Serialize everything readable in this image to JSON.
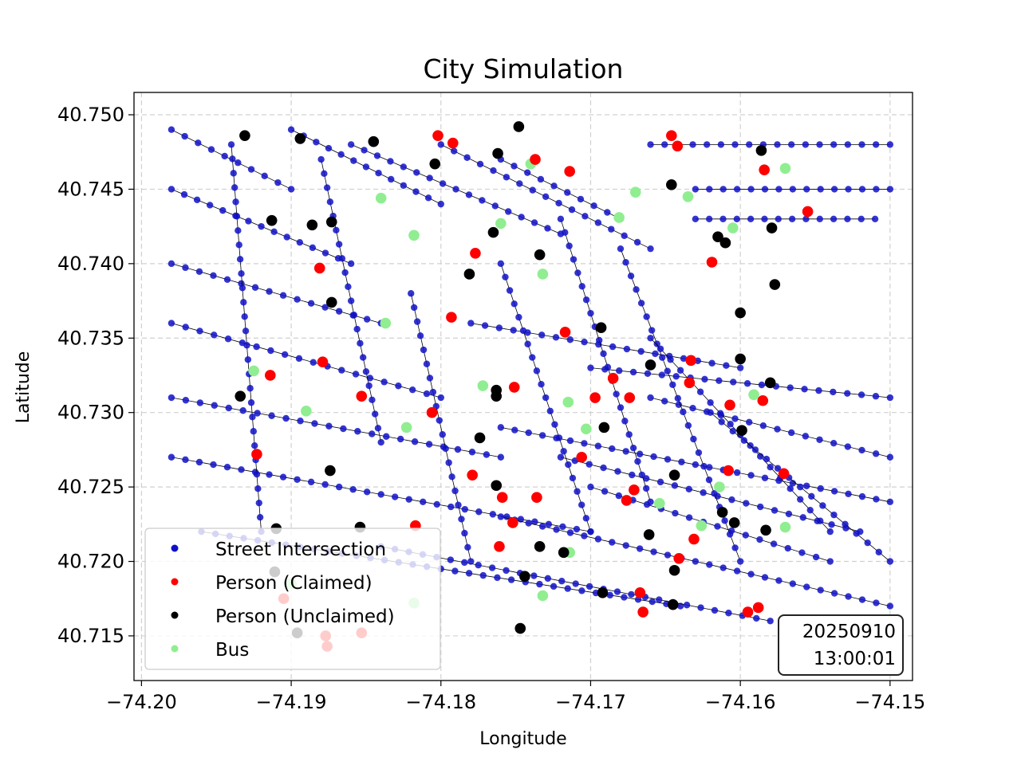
{
  "chart_data": {
    "type": "scatter",
    "title": "City Simulation",
    "xlabel": "Longitude",
    "ylabel": "Latitude",
    "xlim": [
      -74.2005,
      -74.1485
    ],
    "ylim": [
      40.712,
      40.7515
    ],
    "xticks": [
      -74.2,
      -74.19,
      -74.18,
      -74.17,
      -74.16,
      -74.15
    ],
    "xtick_labels": [
      "−74.20",
      "−74.19",
      "−74.18",
      "−74.17",
      "−74.16",
      "−74.15"
    ],
    "yticks": [
      40.715,
      40.72,
      40.725,
      40.73,
      40.735,
      40.74,
      40.745,
      40.75
    ],
    "ytick_labels": [
      "40.715",
      "40.720",
      "40.725",
      "40.730",
      "40.735",
      "40.740",
      "40.745",
      "40.750"
    ],
    "grid": true,
    "legend_position": "lower-left",
    "timestamp_date": "20250910",
    "timestamp_time": "13:00:01",
    "colors": {
      "street": "#1010c8",
      "street_edge": "#000000",
      "claimed": "#ff0000",
      "unclaimed": "#000000",
      "bus": "#90ee90",
      "grid": "#d0d0d0"
    },
    "series": [
      {
        "name": "Street Intersection",
        "color": "#1010c8",
        "grid_lines": [
          {
            "from": [
              -74.198,
              40.749
            ],
            "to": [
              -74.19,
              40.745
            ]
          },
          {
            "from": [
              -74.198,
              40.745
            ],
            "to": [
              -74.186,
              40.74
            ]
          },
          {
            "from": [
              -74.198,
              40.74
            ],
            "to": [
              -74.184,
              40.736
            ]
          },
          {
            "from": [
              -74.198,
              40.736
            ],
            "to": [
              -74.18,
              40.731
            ]
          },
          {
            "from": [
              -74.198,
              40.731
            ],
            "to": [
              -74.176,
              40.727
            ]
          },
          {
            "from": [
              -74.198,
              40.727
            ],
            "to": [
              -74.17,
              40.722
            ]
          },
          {
            "from": [
              -74.196,
              40.722
            ],
            "to": [
              -74.164,
              40.717
            ]
          },
          {
            "from": [
              -74.19,
              40.749
            ],
            "to": [
              -74.18,
              40.744
            ]
          },
          {
            "from": [
              -74.186,
              40.748
            ],
            "to": [
              -74.172,
              40.742
            ]
          },
          {
            "from": [
              -74.18,
              40.748
            ],
            "to": [
              -74.166,
              40.741
            ]
          },
          {
            "from": [
              -74.176,
              40.747
            ],
            "to": [
              -74.168,
              40.743
            ]
          },
          {
            "from": [
              -74.166,
              40.748
            ],
            "to": [
              -74.15,
              40.748
            ]
          },
          {
            "from": [
              -74.163,
              40.745
            ],
            "to": [
              -74.15,
              40.745
            ]
          },
          {
            "from": [
              -74.163,
              40.743
            ],
            "to": [
              -74.151,
              40.743
            ]
          },
          {
            "from": [
              -74.178,
              40.736
            ],
            "to": [
              -74.16,
              40.733
            ]
          },
          {
            "from": [
              -74.17,
              40.733
            ],
            "to": [
              -74.15,
              40.731
            ]
          },
          {
            "from": [
              -74.166,
              40.731
            ],
            "to": [
              -74.15,
              40.727
            ]
          },
          {
            "from": [
              -74.176,
              40.729
            ],
            "to": [
              -74.15,
              40.724
            ]
          },
          {
            "from": [
              -74.172,
              40.727
            ],
            "to": [
              -74.152,
              40.722
            ]
          },
          {
            "from": [
              -74.17,
              40.725
            ],
            "to": [
              -74.154,
              40.72
            ]
          },
          {
            "from": [
              -74.176,
              40.723
            ],
            "to": [
              -74.15,
              40.717
            ]
          },
          {
            "from": [
              -74.184,
              40.721
            ],
            "to": [
              -74.158,
              40.716
            ]
          },
          {
            "from": [
              -74.182,
              40.738
            ],
            "to": [
              -74.178,
              40.72
            ]
          },
          {
            "from": [
              -74.176,
              40.74
            ],
            "to": [
              -74.17,
              40.722
            ]
          },
          {
            "from": [
              -74.172,
              40.743
            ],
            "to": [
              -74.166,
              40.724
            ]
          },
          {
            "from": [
              -74.168,
              40.741
            ],
            "to": [
              -74.16,
              40.72
            ]
          },
          {
            "from": [
              -74.188,
              40.747
            ],
            "to": [
              -74.184,
              40.728
            ]
          },
          {
            "from": [
              -74.194,
              40.748
            ],
            "to": [
              -74.192,
              40.722
            ]
          },
          {
            "from": [
              -74.166,
              40.735
            ],
            "to": [
              -74.154,
              40.722
            ]
          },
          {
            "from": [
              -74.162,
              40.73
            ],
            "to": [
              -74.15,
              40.72
            ]
          }
        ]
      },
      {
        "name": "Person (Claimed)",
        "color": "#ff0000",
        "points": [
          [
            -74.1802,
            40.7486
          ],
          [
            -74.1792,
            40.7481
          ],
          [
            -74.1737,
            40.747
          ],
          [
            -74.1714,
            40.7462
          ],
          [
            -74.1646,
            40.7486
          ],
          [
            -74.1642,
            40.7479
          ],
          [
            -74.1584,
            40.7463
          ],
          [
            -74.1555,
            40.7435
          ],
          [
            -74.1777,
            40.7407
          ],
          [
            -74.1881,
            40.7397
          ],
          [
            -74.1619,
            40.7401
          ],
          [
            -74.1793,
            40.7364
          ],
          [
            -74.1717,
            40.7354
          ],
          [
            -74.1879,
            40.7334
          ],
          [
            -74.1633,
            40.7335
          ],
          [
            -74.1914,
            40.7325
          ],
          [
            -74.1685,
            40.7323
          ],
          [
            -74.1751,
            40.7317
          ],
          [
            -74.1634,
            40.732
          ],
          [
            -74.1853,
            40.7311
          ],
          [
            -74.1697,
            40.731
          ],
          [
            -74.1674,
            40.731
          ],
          [
            -74.1607,
            40.7305
          ],
          [
            -74.1585,
            40.7308
          ],
          [
            -74.1806,
            40.73
          ],
          [
            -74.1923,
            40.7272
          ],
          [
            -74.1706,
            40.727
          ],
          [
            -74.1779,
            40.7258
          ],
          [
            -74.1608,
            40.7261
          ],
          [
            -74.1571,
            40.7259
          ],
          [
            -74.1759,
            40.7243
          ],
          [
            -74.1736,
            40.7243
          ],
          [
            -74.1671,
            40.7248
          ],
          [
            -74.1676,
            40.7241
          ],
          [
            -74.1752,
            40.7226
          ],
          [
            -74.1817,
            40.7224
          ],
          [
            -74.1631,
            40.7215
          ],
          [
            -74.1761,
            40.721
          ],
          [
            -74.1641,
            40.7202
          ],
          [
            -74.1667,
            40.7179
          ],
          [
            -74.1665,
            40.7166
          ],
          [
            -74.1595,
            40.7166
          ],
          [
            -74.1588,
            40.7169
          ],
          [
            -74.1905,
            40.7175
          ],
          [
            -74.1877,
            40.715
          ],
          [
            -74.1853,
            40.7152
          ],
          [
            -74.1876,
            40.7143
          ]
        ]
      },
      {
        "name": "Person (Unclaimed)",
        "color": "#000000",
        "points": [
          [
            -74.1931,
            40.7486
          ],
          [
            -74.1894,
            40.7484
          ],
          [
            -74.1845,
            40.7482
          ],
          [
            -74.1748,
            40.7492
          ],
          [
            -74.1762,
            40.7474
          ],
          [
            -74.1804,
            40.7467
          ],
          [
            -74.1586,
            40.7476
          ],
          [
            -74.1646,
            40.7453
          ],
          [
            -74.1913,
            40.7429
          ],
          [
            -74.1886,
            40.7426
          ],
          [
            -74.1873,
            40.7428
          ],
          [
            -74.1579,
            40.7424
          ],
          [
            -74.1765,
            40.7421
          ],
          [
            -74.1615,
            40.7418
          ],
          [
            -74.161,
            40.7414
          ],
          [
            -74.1734,
            40.7406
          ],
          [
            -74.1781,
            40.7393
          ],
          [
            -74.1577,
            40.7386
          ],
          [
            -74.1873,
            40.7374
          ],
          [
            -74.16,
            40.7367
          ],
          [
            -74.1693,
            40.7357
          ],
          [
            -74.16,
            40.7336
          ],
          [
            -74.166,
            40.7332
          ],
          [
            -74.158,
            40.732
          ],
          [
            -74.1763,
            40.7315
          ],
          [
            -74.1763,
            40.7311
          ],
          [
            -74.1934,
            40.7311
          ],
          [
            -74.1691,
            40.729
          ],
          [
            -74.1599,
            40.7288
          ],
          [
            -74.1774,
            40.7283
          ],
          [
            -74.1874,
            40.7261
          ],
          [
            -74.1644,
            40.7258
          ],
          [
            -74.1763,
            40.7251
          ],
          [
            -74.1612,
            40.7233
          ],
          [
            -74.1604,
            40.7226
          ],
          [
            -74.1583,
            40.7221
          ],
          [
            -74.191,
            40.7222
          ],
          [
            -74.1854,
            40.7223
          ],
          [
            -74.1661,
            40.7218
          ],
          [
            -74.1734,
            40.721
          ],
          [
            -74.1718,
            40.7206
          ],
          [
            -74.1644,
            40.7194
          ],
          [
            -74.1744,
            40.719
          ],
          [
            -74.1692,
            40.7179
          ],
          [
            -74.1645,
            40.7171
          ],
          [
            -74.1747,
            40.7155
          ],
          [
            -74.1911,
            40.7193
          ],
          [
            -74.1896,
            40.7152
          ]
        ]
      },
      {
        "name": "Bus",
        "color": "#90ee90",
        "points": [
          [
            -74.174,
            40.7467
          ],
          [
            -74.157,
            40.7464
          ],
          [
            -74.184,
            40.7444
          ],
          [
            -74.167,
            40.7448
          ],
          [
            -74.1635,
            40.7445
          ],
          [
            -74.176,
            40.7427
          ],
          [
            -74.1681,
            40.7431
          ],
          [
            -74.1605,
            40.7424
          ],
          [
            -74.1818,
            40.7419
          ],
          [
            -74.1732,
            40.7393
          ],
          [
            -74.1837,
            40.736
          ],
          [
            -74.1925,
            40.7328
          ],
          [
            -74.1772,
            40.7318
          ],
          [
            -74.1591,
            40.7312
          ],
          [
            -74.1715,
            40.7307
          ],
          [
            -74.189,
            40.7301
          ],
          [
            -74.1823,
            40.729
          ],
          [
            -74.1703,
            40.7289
          ],
          [
            -74.1614,
            40.725
          ],
          [
            -74.1654,
            40.7239
          ],
          [
            -74.1626,
            40.7224
          ],
          [
            -74.157,
            40.7223
          ],
          [
            -74.1714,
            40.7206
          ],
          [
            -74.1732,
            40.7177
          ],
          [
            -74.1818,
            40.7172
          ],
          [
            -74.19,
            40.7185
          ]
        ]
      }
    ]
  },
  "legend": {
    "items": [
      {
        "label": "Street Intersection",
        "color": "#1010c8"
      },
      {
        "label": "Person (Claimed)",
        "color": "#ff0000"
      },
      {
        "label": "Person (Unclaimed)",
        "color": "#000000"
      },
      {
        "label": "Bus",
        "color": "#90ee90"
      }
    ]
  }
}
